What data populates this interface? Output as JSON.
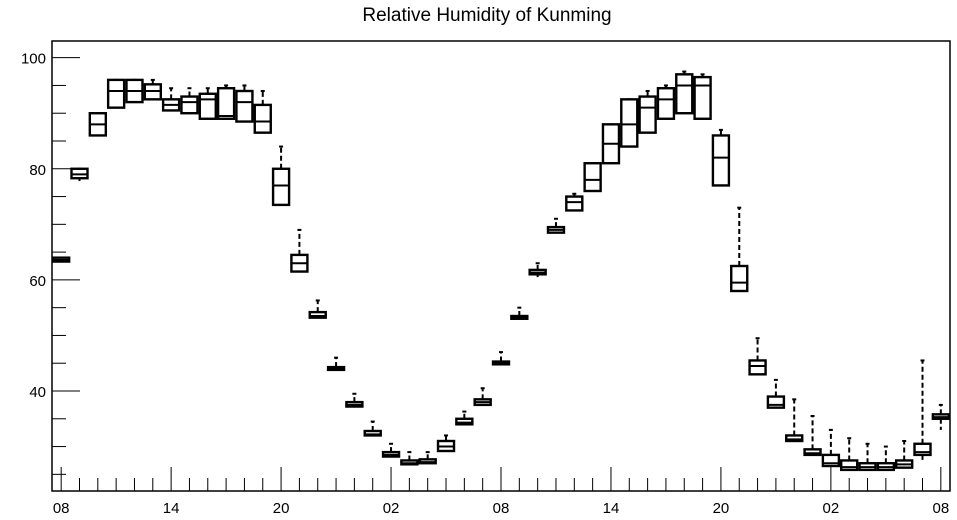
{
  "chart_data": {
    "type": "box",
    "title": "Relative Humidity of Kunming",
    "xlabel": "",
    "ylabel": "",
    "ylim": [
      22,
      103
    ],
    "xlim": [
      -0.5,
      48.5
    ],
    "grid": false,
    "legend": "none",
    "x_tick_labels": [
      {
        "x": 0,
        "label": "08"
      },
      {
        "x": 6,
        "label": "14"
      },
      {
        "x": 12,
        "label": "20"
      },
      {
        "x": 18,
        "label": "02"
      },
      {
        "x": 24,
        "label": "08"
      },
      {
        "x": 30,
        "label": "14"
      },
      {
        "x": 36,
        "label": "20"
      },
      {
        "x": 42,
        "label": "02"
      },
      {
        "x": 48,
        "label": "08"
      }
    ],
    "y_ticks": [
      40,
      60,
      80,
      100
    ],
    "boxes": [
      {
        "x": 0,
        "q1": 63.3,
        "median": 63.6,
        "q3": 64.0,
        "whisker_low": 63.3,
        "whisker_high": 64.0
      },
      {
        "x": 1,
        "q1": 78.3,
        "median": 79.0,
        "q3": 80.0,
        "whisker_low": 77.8,
        "whisker_high": 80.0
      },
      {
        "x": 2,
        "q1": 86.0,
        "median": 88.0,
        "q3": 90.0,
        "whisker_low": 86.0,
        "whisker_high": 90.0
      },
      {
        "x": 3,
        "q1": 91.0,
        "median": 94.0,
        "q3": 96.0,
        "whisker_low": 91.0,
        "whisker_high": 96.0
      },
      {
        "x": 4,
        "q1": 92.0,
        "median": 94.0,
        "q3": 96.0,
        "whisker_low": 92.0,
        "whisker_high": 96.0
      },
      {
        "x": 5,
        "q1": 92.5,
        "median": 94.0,
        "q3": 95.2,
        "whisker_low": 92.5,
        "whisker_high": 96.0
      },
      {
        "x": 6,
        "q1": 90.5,
        "median": 91.5,
        "q3": 92.5,
        "whisker_low": 90.5,
        "whisker_high": 94.5
      },
      {
        "x": 7,
        "q1": 90.0,
        "median": 92.0,
        "q3": 93.0,
        "whisker_low": 90.0,
        "whisker_high": 94.5
      },
      {
        "x": 8,
        "q1": 89.0,
        "median": 92.5,
        "q3": 93.5,
        "whisker_low": 89.0,
        "whisker_high": 94.5
      },
      {
        "x": 9,
        "q1": 89.0,
        "median": 89.5,
        "q3": 94.5,
        "whisker_low": 89.0,
        "whisker_high": 95.0
      },
      {
        "x": 10,
        "q1": 88.5,
        "median": 92.0,
        "q3": 94.0,
        "whisker_low": 88.5,
        "whisker_high": 95.0
      },
      {
        "x": 11,
        "q1": 86.5,
        "median": 88.5,
        "q3": 91.5,
        "whisker_low": 86.5,
        "whisker_high": 94.0
      },
      {
        "x": 12,
        "q1": 73.5,
        "median": 77.0,
        "q3": 80.0,
        "whisker_low": 73.5,
        "whisker_high": 84.0
      },
      {
        "x": 13,
        "q1": 61.5,
        "median": 63.0,
        "q3": 64.5,
        "whisker_low": 61.5,
        "whisker_high": 69.0
      },
      {
        "x": 14,
        "q1": 53.2,
        "median": 53.5,
        "q3": 54.2,
        "whisker_low": 53.2,
        "whisker_high": 56.3
      },
      {
        "x": 15,
        "q1": 43.8,
        "median": 44.0,
        "q3": 44.3,
        "whisker_low": 43.8,
        "whisker_high": 46.0
      },
      {
        "x": 16,
        "q1": 37.2,
        "median": 37.5,
        "q3": 38.0,
        "whisker_low": 37.2,
        "whisker_high": 39.5
      },
      {
        "x": 17,
        "q1": 32.0,
        "median": 32.2,
        "q3": 32.8,
        "whisker_low": 32.0,
        "whisker_high": 34.5
      },
      {
        "x": 18,
        "q1": 28.2,
        "median": 28.5,
        "q3": 29.0,
        "whisker_low": 28.2,
        "whisker_high": 30.5
      },
      {
        "x": 19,
        "q1": 26.8,
        "median": 27.0,
        "q3": 27.5,
        "whisker_low": 26.8,
        "whisker_high": 29.0
      },
      {
        "x": 20,
        "q1": 27.0,
        "median": 27.2,
        "q3": 27.7,
        "whisker_low": 27.0,
        "whisker_high": 29.0
      },
      {
        "x": 21,
        "q1": 29.2,
        "median": 30.0,
        "q3": 31.0,
        "whisker_low": 29.2,
        "whisker_high": 32.0
      },
      {
        "x": 22,
        "q1": 34.0,
        "median": 34.3,
        "q3": 35.0,
        "whisker_low": 34.0,
        "whisker_high": 36.3
      },
      {
        "x": 23,
        "q1": 37.5,
        "median": 38.0,
        "q3": 38.5,
        "whisker_low": 37.5,
        "whisker_high": 40.5
      },
      {
        "x": 24,
        "q1": 44.8,
        "median": 45.0,
        "q3": 45.3,
        "whisker_low": 44.8,
        "whisker_high": 47.0
      },
      {
        "x": 25,
        "q1": 53.0,
        "median": 53.2,
        "q3": 53.5,
        "whisker_low": 53.0,
        "whisker_high": 55.0
      },
      {
        "x": 26,
        "q1": 61.0,
        "median": 61.3,
        "q3": 61.8,
        "whisker_low": 60.5,
        "whisker_high": 63.0
      },
      {
        "x": 27,
        "q1": 68.5,
        "median": 69.0,
        "q3": 69.5,
        "whisker_low": 68.5,
        "whisker_high": 71.0
      },
      {
        "x": 28,
        "q1": 72.5,
        "median": 74.0,
        "q3": 75.0,
        "whisker_low": 72.5,
        "whisker_high": 75.5
      },
      {
        "x": 29,
        "q1": 76.0,
        "median": 78.0,
        "q3": 81.0,
        "whisker_low": 76.0,
        "whisker_high": 81.0
      },
      {
        "x": 30,
        "q1": 81.0,
        "median": 84.5,
        "q3": 88.0,
        "whisker_low": 81.0,
        "whisker_high": 88.0
      },
      {
        "x": 31,
        "q1": 84.0,
        "median": 88.0,
        "q3": 92.5,
        "whisker_low": 84.0,
        "whisker_high": 92.5
      },
      {
        "x": 32,
        "q1": 86.5,
        "median": 91.0,
        "q3": 93.0,
        "whisker_low": 86.5,
        "whisker_high": 94.0
      },
      {
        "x": 33,
        "q1": 89.0,
        "median": 92.5,
        "q3": 94.5,
        "whisker_low": 89.0,
        "whisker_high": 95.0
      },
      {
        "x": 34,
        "q1": 90.0,
        "median": 95.0,
        "q3": 97.0,
        "whisker_low": 90.0,
        "whisker_high": 97.5
      },
      {
        "x": 35,
        "q1": 89.0,
        "median": 95.0,
        "q3": 96.5,
        "whisker_low": 89.0,
        "whisker_high": 97.0
      },
      {
        "x": 36,
        "q1": 77.0,
        "median": 82.0,
        "q3": 86.0,
        "whisker_low": 77.0,
        "whisker_high": 87.0
      },
      {
        "x": 37,
        "q1": 58.0,
        "median": 59.5,
        "q3": 62.5,
        "whisker_low": 58.0,
        "whisker_high": 73.0
      },
      {
        "x": 38,
        "q1": 43.0,
        "median": 44.5,
        "q3": 45.5,
        "whisker_low": 43.0,
        "whisker_high": 49.5
      },
      {
        "x": 39,
        "q1": 37.0,
        "median": 37.5,
        "q3": 39.0,
        "whisker_low": 37.0,
        "whisker_high": 42.0
      },
      {
        "x": 40,
        "q1": 31.0,
        "median": 31.3,
        "q3": 32.0,
        "whisker_low": 31.0,
        "whisker_high": 38.5
      },
      {
        "x": 41,
        "q1": 28.5,
        "median": 28.8,
        "q3": 29.5,
        "whisker_low": 28.5,
        "whisker_high": 35.5
      },
      {
        "x": 42,
        "q1": 26.5,
        "median": 27.0,
        "q3": 28.5,
        "whisker_low": 26.5,
        "whisker_high": 33.0
      },
      {
        "x": 43,
        "q1": 25.8,
        "median": 26.3,
        "q3": 27.5,
        "whisker_low": 25.8,
        "whisker_high": 31.5
      },
      {
        "x": 44,
        "q1": 25.8,
        "median": 26.3,
        "q3": 27.0,
        "whisker_low": 25.8,
        "whisker_high": 30.5
      },
      {
        "x": 45,
        "q1": 25.8,
        "median": 26.3,
        "q3": 27.0,
        "whisker_low": 25.8,
        "whisker_high": 30.0
      },
      {
        "x": 46,
        "q1": 26.2,
        "median": 26.8,
        "q3": 27.5,
        "whisker_low": 26.2,
        "whisker_high": 31.0
      },
      {
        "x": 47,
        "q1": 28.5,
        "median": 29.0,
        "q3": 30.5,
        "whisker_low": 27.5,
        "whisker_high": 45.5
      },
      {
        "x": 48,
        "q1": 35.0,
        "median": 35.3,
        "q3": 35.8,
        "whisker_low": 33.0,
        "whisker_high": 37.5
      }
    ]
  }
}
